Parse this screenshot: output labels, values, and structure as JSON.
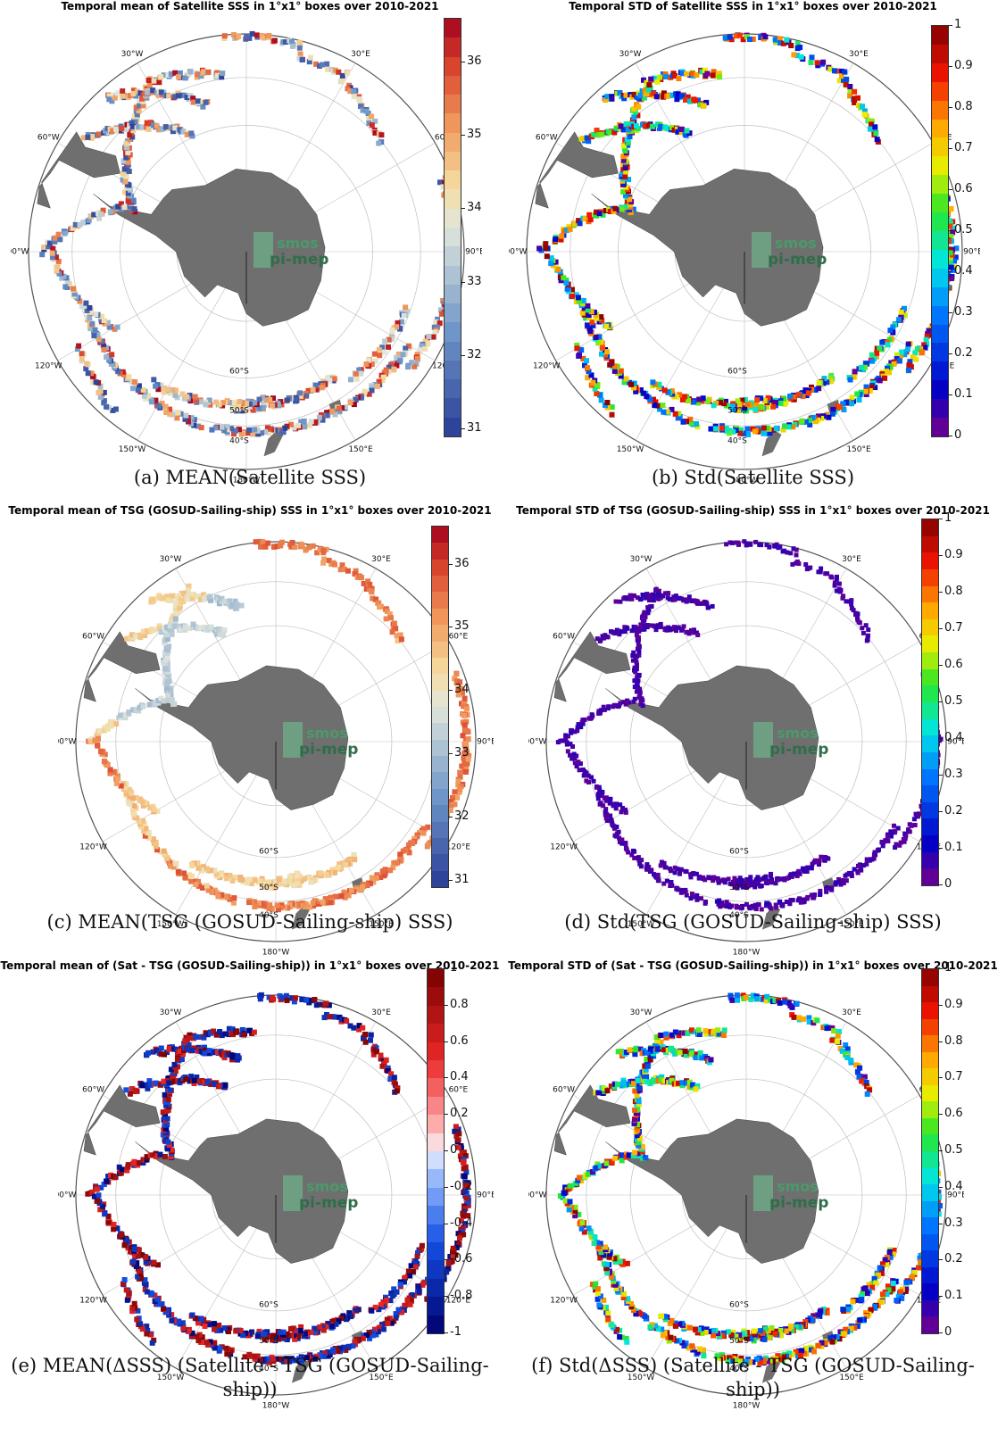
{
  "panels": [
    {
      "id": "a",
      "title": "Temporal mean of Satellite SSS in 1°x1° boxes over 2010-2021",
      "caption": "(a) MEAN(Satellite SSS)",
      "scale": "div",
      "ticks": [
        "31",
        "32",
        "33",
        "34",
        "35",
        "36"
      ],
      "range": [
        30.9,
        36.6
      ],
      "pattern": "sat"
    },
    {
      "id": "b",
      "title": "Temporal STD of Satellite SSS in 1°x1° boxes over 2010-2021",
      "caption": "(b) Std(Satellite SSS)",
      "scale": "jet",
      "ticks": [
        "0",
        "0.1",
        "0.2",
        "0.3",
        "0.4",
        "0.5",
        "0.6",
        "0.7",
        "0.8",
        "0.9",
        "1"
      ],
      "range": [
        0,
        1
      ],
      "pattern": "sat"
    },
    {
      "id": "c",
      "title": "Temporal mean of TSG (GOSUD-Sailing-ship) SSS in 1°x1° boxes over 2010-2021",
      "caption": "(c) MEAN(TSG (GOSUD-Sailing-ship) SSS)",
      "scale": "div",
      "ticks": [
        "31",
        "32",
        "33",
        "34",
        "35",
        "36"
      ],
      "range": [
        30.9,
        36.6
      ],
      "pattern": "tsg"
    },
    {
      "id": "d",
      "title": "Temporal STD of TSG (GOSUD-Sailing-ship) SSS in 1°x1° boxes over 2010-2021",
      "caption": "(d) Std(TSG (GOSUD-Sailing-ship) SSS)",
      "scale": "jet",
      "ticks": [
        "0",
        "0.1",
        "0.2",
        "0.3",
        "0.4",
        "0.5",
        "0.6",
        "0.7",
        "0.8",
        "0.9",
        "1"
      ],
      "range": [
        0,
        1
      ],
      "pattern": "tsgstd"
    },
    {
      "id": "e",
      "title": "Temporal mean of (Sat - TSG (GOSUD-Sailing-ship)) in 1°x1° boxes over 2010-2021",
      "caption": "(e) MEAN(ΔSSS) (Satellite - TSG (GOSUD-Sailing-ship))",
      "scale": "bwr",
      "ticks": [
        "-1",
        "-0.8",
        "-0.6",
        "-0.4",
        "-0.2",
        "0",
        "0.2",
        "0.4",
        "0.6",
        "0.8",
        "1"
      ],
      "range": [
        -1,
        1
      ],
      "pattern": "diff"
    },
    {
      "id": "f",
      "title": "Temporal STD of (Sat - TSG (GOSUD-Sailing-ship)) in 1°x1° boxes over 2010-2021",
      "caption": "(f) Std(ΔSSS) (Satellite - TSG (GOSUD-Sailing-ship))",
      "scale": "jet",
      "ticks": [
        "0",
        "0.1",
        "0.2",
        "0.3",
        "0.4",
        "0.5",
        "0.6",
        "0.7",
        "0.8",
        "0.9",
        "1"
      ],
      "range": [
        0,
        1
      ],
      "pattern": "sat"
    }
  ],
  "map_labels": {
    "meridians": [
      "30°E",
      "60°E",
      "90°E",
      "120°E",
      "150°E",
      "180°W",
      "150°W",
      "120°W",
      "90°W",
      "60°W",
      "30°W"
    ],
    "parallels": [
      "60°S",
      "50°S",
      "40°S"
    ]
  },
  "watermark": {
    "line1": "smos",
    "line2": "pi-mep"
  },
  "colors": {
    "land": "#6f6f6f",
    "grid": "#bfbfbf",
    "frame": "#555555"
  }
}
